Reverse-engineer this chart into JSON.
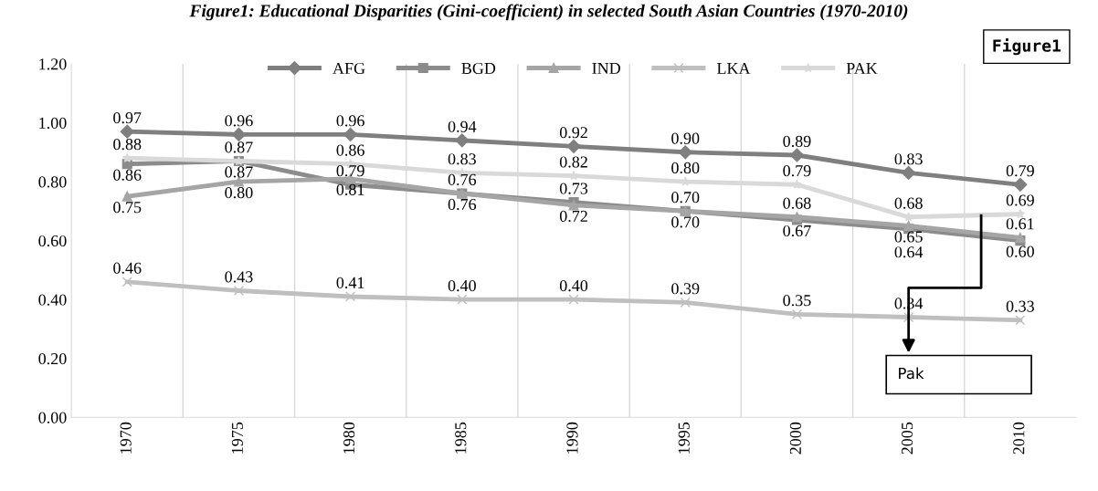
{
  "chart_data": {
    "type": "line",
    "title": "Figure1: Educational Disparities (Gini-coefficient) in selected South Asian Countries (1970-2010)",
    "categories": [
      "1970",
      "1975",
      "1980",
      "1985",
      "1990",
      "1995",
      "2000",
      "2005",
      "2010"
    ],
    "series": [
      {
        "name": "AFG",
        "color": "#7f7f7f",
        "marker": "diamond",
        "values": [
          0.97,
          0.96,
          0.96,
          0.94,
          0.92,
          0.9,
          0.89,
          0.83,
          0.79
        ],
        "value_labels": [
          "0.97",
          "0.96",
          "0.96",
          "0.94",
          "0.92",
          "0.90",
          "0.89",
          "0.83",
          "0.79"
        ]
      },
      {
        "name": "BGD",
        "color": "#8c8c8c",
        "marker": "square",
        "values": [
          0.86,
          0.87,
          0.79,
          0.76,
          0.73,
          0.7,
          0.67,
          0.64,
          0.6
        ],
        "value_labels": [
          "0.86",
          "0.87",
          "0.79",
          "0.76",
          "0.73",
          "0.70",
          "0.67",
          "0.64",
          "0.60"
        ]
      },
      {
        "name": "IND",
        "color": "#a5a5a5",
        "marker": "triangle",
        "values": [
          0.75,
          0.8,
          0.81,
          0.76,
          0.72,
          0.7,
          0.68,
          0.65,
          0.61
        ],
        "value_labels": [
          "0.75",
          "0.80",
          "0.81",
          "0.76",
          "0.72",
          "0.70",
          "0.68",
          "0.65",
          "0.61"
        ]
      },
      {
        "name": "LKA",
        "color": "#bfbfbf",
        "marker": "cross",
        "values": [
          0.46,
          0.43,
          0.41,
          0.4,
          0.4,
          0.39,
          0.35,
          0.34,
          0.33
        ],
        "value_labels": [
          "0.46",
          "0.43",
          "0.41",
          "0.40",
          "0.40",
          "0.39",
          "0.35",
          "0.34",
          "0.33"
        ]
      },
      {
        "name": "PAK",
        "color": "#d9d9d9",
        "marker": "star",
        "values": [
          0.88,
          0.87,
          0.86,
          0.83,
          0.82,
          0.8,
          0.79,
          0.68,
          0.69
        ],
        "value_labels": [
          "0.88",
          "0.87",
          "0.86",
          "0.83",
          "0.82",
          "0.80",
          "0.79",
          "0.68",
          "0.69"
        ]
      }
    ],
    "ylim": [
      0,
      1.2
    ],
    "yticks": [
      {
        "value": 0,
        "label": "0.00"
      },
      {
        "value": 0.2,
        "label": "0.20"
      },
      {
        "value": 0.4,
        "label": "0.40"
      },
      {
        "value": 0.6,
        "label": "0.60"
      },
      {
        "value": 0.8,
        "label": "0.80"
      },
      {
        "value": 1.0,
        "label": "1.00"
      },
      {
        "value": 1.2,
        "label": "1.20"
      }
    ],
    "grid": "x",
    "legend": "top",
    "annotations": [
      "Figure1",
      "Pak"
    ]
  }
}
